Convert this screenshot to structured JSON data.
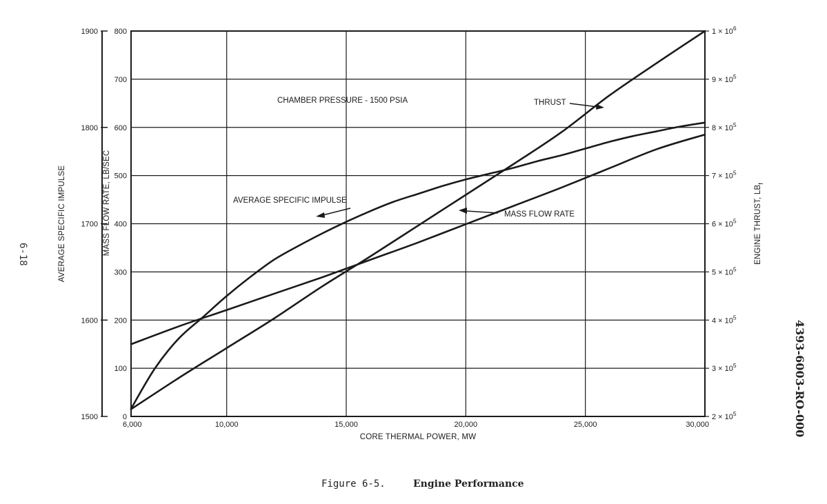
{
  "chart_data": {
    "type": "line",
    "xlabel": "CORE THERMAL POWER, MW",
    "x_ticks": [
      "6,000",
      "10,000",
      "15,000",
      "20,000",
      "25,000",
      "30,000"
    ],
    "x_tick_values": [
      6000,
      10000,
      15000,
      20000,
      25000,
      30000
    ],
    "xlim": [
      6000,
      30000
    ],
    "grid": true,
    "axes": {
      "impulse": {
        "label": "AVERAGE SPECIFIC IMPULSE",
        "ticks": [
          "1500",
          "1600",
          "1700",
          "1800",
          "1900"
        ],
        "tick_values": [
          1500,
          1600,
          1700,
          1800,
          1900
        ],
        "ylim": [
          1500,
          1900
        ]
      },
      "mass_flow": {
        "label": "MASS FLOW RATE, LB/SEC",
        "ticks": [
          "0",
          "100",
          "200",
          "300",
          "400",
          "500",
          "600",
          "700",
          "800"
        ],
        "tick_values": [
          0,
          100,
          200,
          300,
          400,
          500,
          600,
          700,
          800
        ],
        "ylim": [
          0,
          800
        ]
      },
      "thrust": {
        "label_main": "ENGINE THRUST, LB",
        "label_sub": "f",
        "tick_base": "× 10",
        "ticks": [
          {
            "mant": "2",
            "exp": "5"
          },
          {
            "mant": "3",
            "exp": "5"
          },
          {
            "mant": "4",
            "exp": "5"
          },
          {
            "mant": "5",
            "exp": "5"
          },
          {
            "mant": "6",
            "exp": "5"
          },
          {
            "mant": "7",
            "exp": "5"
          },
          {
            "mant": "8",
            "exp": "5"
          },
          {
            "mant": "9",
            "exp": "5"
          },
          {
            "mant": "1",
            "exp": "6"
          }
        ],
        "tick_values": [
          200000,
          300000,
          400000,
          500000,
          600000,
          700000,
          800000,
          900000,
          1000000
        ],
        "ylim": [
          200000,
          1000000
        ]
      }
    },
    "series": [
      {
        "name": "AVERAGE SPECIFIC IMPULSE",
        "axis": "impulse",
        "x": [
          6000,
          7000,
          8000,
          9000,
          10000,
          11000,
          12000,
          13000,
          14000,
          15000,
          16000,
          17000,
          18000,
          19000,
          20000,
          21000,
          22000,
          23000,
          24000,
          25000,
          26000,
          27000,
          28000,
          29000,
          30000
        ],
        "y": [
          1508,
          1550,
          1581,
          1603,
          1625,
          1645,
          1663,
          1677,
          1690,
          1702,
          1713,
          1723,
          1731,
          1739,
          1746,
          1752,
          1758,
          1765,
          1771,
          1778,
          1785,
          1791,
          1796,
          1801,
          1805
        ]
      },
      {
        "name": "THRUST",
        "axis": "thrust",
        "x": [
          6000,
          8000,
          10000,
          12000,
          14000,
          16000,
          18000,
          20000,
          22000,
          24000,
          26000,
          28000,
          30000
        ],
        "y": [
          215000,
          280000,
          342000,
          404000,
          470000,
          532000,
          596000,
          660000,
          724000,
          790000,
          866000,
          934000,
          1000000
        ]
      },
      {
        "name": "MASS FLOW RATE",
        "axis": "mass_flow",
        "x": [
          6000,
          8000,
          10000,
          12000,
          14000,
          16000,
          18000,
          20000,
          22000,
          24000,
          26000,
          28000,
          30000
        ],
        "y": [
          150,
          187,
          221,
          255,
          289,
          325,
          361,
          399,
          437,
          475,
          515,
          555,
          585
        ]
      }
    ],
    "annotations": {
      "chamber_pressure": "CHAMBER PRESSURE - 1500 PSIA",
      "impulse_label": "AVERAGE SPECIFIC IMPULSE",
      "thrust_label": "THRUST",
      "mass_flow_label": "MASS FLOW RATE"
    }
  },
  "caption": {
    "prefix": "Figure 6-5.",
    "title": "Engine Performance"
  },
  "page_number": "6-18",
  "document_number": "4393-6003-RO-000"
}
